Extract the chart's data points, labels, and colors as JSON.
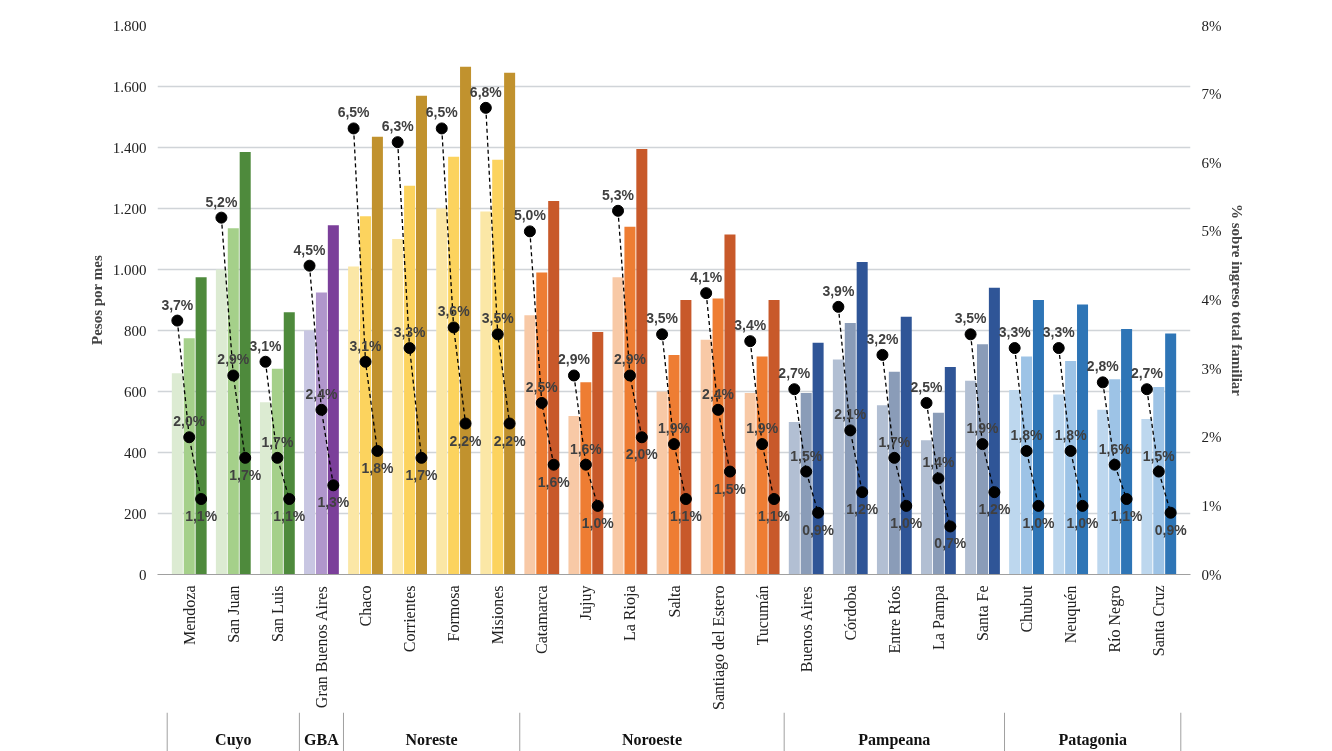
{
  "chart_data": {
    "type": "bar",
    "categories": [
      "Mendoza",
      "San Juan",
      "San Luis",
      "Gran Buenos Aires",
      "Chaco",
      "Corrientes",
      "Formosa",
      "Misiones",
      "Catamarca",
      "Jujuy",
      "La Rioja",
      "Salta",
      "Santiago del Estero",
      "Tucumán",
      "Buenos Aires",
      "Córdoba",
      "Entre Ríos",
      "La Pampa",
      "Santa Fe",
      "Chubut",
      "Neuquén",
      "Río Negro",
      "Santa Cruz"
    ],
    "series": [
      {
        "values": [
          660,
          1000,
          565,
          800,
          1010,
          1100,
          1200,
          1190,
          850,
          520,
          975,
          600,
          770,
          595,
          500,
          705,
          555,
          440,
          635,
          605,
          590,
          540,
          510
        ],
        "colors": [
          "#dcebd2",
          "#dcebd2",
          "#dcebd2",
          "#c8c6e2",
          "#fbe7a6",
          "#fbe7a6",
          "#fbe7a6",
          "#fbe7a6",
          "#f8c9a6",
          "#f8c9a6",
          "#f8c9a6",
          "#f8c9a6",
          "#f8c9a6",
          "#f8c9a6",
          "#b2bfd3",
          "#b2bfd3",
          "#b2bfd3",
          "#b2bfd3",
          "#b2bfd3",
          "#bdd7ee",
          "#bdd7ee",
          "#bdd7ee",
          "#bdd7ee"
        ]
      },
      {
        "values": [
          775,
          1135,
          675,
          925,
          1175,
          1275,
          1370,
          1360,
          990,
          630,
          1140,
          720,
          905,
          715,
          595,
          825,
          665,
          530,
          755,
          715,
          700,
          640,
          615
        ],
        "colors": [
          "#a5d08a",
          "#a5d08a",
          "#a5d08a",
          "#b096cc",
          "#fcd35e",
          "#fcd35e",
          "#fcd35e",
          "#fcd35e",
          "#ee7d33",
          "#ee7d33",
          "#ee7d33",
          "#ee7d33",
          "#ee7d33",
          "#ee7d33",
          "#8a9cb8",
          "#8a9cb8",
          "#8a9cb8",
          "#8a9cb8",
          "#8a9cb8",
          "#9dc3e6",
          "#9dc3e6",
          "#9dc3e6",
          "#9dc3e6"
        ]
      },
      {
        "values": [
          975,
          1385,
          860,
          1145,
          1435,
          1570,
          1665,
          1645,
          1225,
          795,
          1395,
          900,
          1115,
          900,
          760,
          1025,
          845,
          680,
          940,
          900,
          885,
          805,
          790
        ],
        "colors": [
          "#4e8a3c",
          "#4e8a3c",
          "#4e8a3c",
          "#7b3f9a",
          "#c1922e",
          "#c1922e",
          "#c1922e",
          "#c1922e",
          "#c8592a",
          "#c8592a",
          "#c8592a",
          "#c8592a",
          "#c8592a",
          "#c8592a",
          "#2f5597",
          "#2f5597",
          "#2f5597",
          "#2f5597",
          "#2f5597",
          "#2e75b6",
          "#2e75b6",
          "#2e75b6",
          "#2e75b6"
        ]
      },
      {
        "type": "scatter",
        "axis": "y2",
        "color": "#000000",
        "values": [
          3.7,
          5.2,
          3.1,
          4.5,
          6.5,
          6.3,
          6.5,
          6.8,
          5.0,
          2.9,
          5.3,
          3.5,
          4.1,
          3.4,
          2.7,
          3.9,
          3.2,
          2.5,
          3.5,
          3.3,
          3.3,
          2.8,
          2.7
        ],
        "value_labels": [
          "3,7%",
          "5,2%",
          "3,1%",
          "4,5%",
          "6,5%",
          "6,3%",
          "6,5%",
          "6,8%",
          "5,0%",
          "2,9%",
          "5,3%",
          "3,5%",
          "4,1%",
          "3,4%",
          "2,7%",
          "3,9%",
          "3,2%",
          "2,5%",
          "3,5%",
          "3,3%",
          "3,3%",
          "2,8%",
          "2,7%"
        ]
      },
      {
        "type": "scatter",
        "axis": "y2",
        "color": "#000000",
        "values": [
          2.0,
          2.9,
          1.7,
          2.4,
          3.1,
          3.3,
          3.6,
          3.5,
          2.5,
          1.6,
          2.9,
          1.9,
          2.4,
          1.9,
          1.5,
          2.1,
          1.7,
          1.4,
          1.9,
          1.8,
          1.8,
          1.6,
          1.5
        ],
        "value_labels": [
          "2,0%",
          "2,9%",
          "1,7%",
          "2,4%",
          "3,1%",
          "3,3%",
          "3,6%",
          "3,5%",
          "2,5%",
          "1,6%",
          "2,9%",
          "1,9%",
          "2,4%",
          "1,9%",
          "1,5%",
          "2,1%",
          "1,7%",
          "1,4%",
          "1,9%",
          "1,8%",
          "1,8%",
          "1,6%",
          "1,5%"
        ]
      },
      {
        "type": "scatter",
        "axis": "y2",
        "color": "#000000",
        "values": [
          1.1,
          1.7,
          1.1,
          1.3,
          1.8,
          1.7,
          2.2,
          2.2,
          1.6,
          1.0,
          2.0,
          1.1,
          1.5,
          1.1,
          0.9,
          1.2,
          1.0,
          0.7,
          1.2,
          1.0,
          1.0,
          1.1,
          0.9
        ],
        "value_labels": [
          "1,1%",
          "1,7%",
          "1,1%",
          "1,3%",
          "1,8%",
          "1,7%",
          "2,2%",
          "2,2%",
          "1,6%",
          "1,0%",
          "2,0%",
          "1,1%",
          "1,5%",
          "1,1%",
          "0,9%",
          "1,2%",
          "1,0%",
          "0,7%",
          "1,2%",
          "1,0%",
          "1,0%",
          "1,1%",
          "0,9%"
        ]
      }
    ],
    "marker": "circle",
    "line_style": "dashed",
    "ylabel": "Pesos por mes",
    "y2label": "% sobre ingreso total familiar",
    "ylim": [
      0,
      1800
    ],
    "yticks": [
      0,
      200,
      400,
      600,
      800,
      {
        "value": 1000,
        "label": "1.000"
      },
      {
        "value": 1200,
        "label": "1.200"
      },
      {
        "value": 1400,
        "label": "1.400"
      },
      {
        "value": 1600,
        "label": "1.600"
      },
      {
        "value": 1800,
        "label": "1.800"
      }
    ],
    "y2lim": [
      0,
      8
    ],
    "y2ticks": [
      {
        "value": 0,
        "label": "0%"
      },
      {
        "value": 1,
        "label": "1%"
      },
      {
        "value": 2,
        "label": "2%"
      },
      {
        "value": 3,
        "label": "3%"
      },
      {
        "value": 4,
        "label": "4%"
      },
      {
        "value": 5,
        "label": "5%"
      },
      {
        "value": 6,
        "label": "6%"
      },
      {
        "value": 7,
        "label": "7%"
      },
      {
        "value": 8,
        "label": "8%"
      }
    ],
    "grid": "y",
    "annotations": [
      "Cuyo",
      "GBA",
      "Noreste",
      "Noroeste",
      "Pampeana",
      "Patagonia"
    ]
  }
}
